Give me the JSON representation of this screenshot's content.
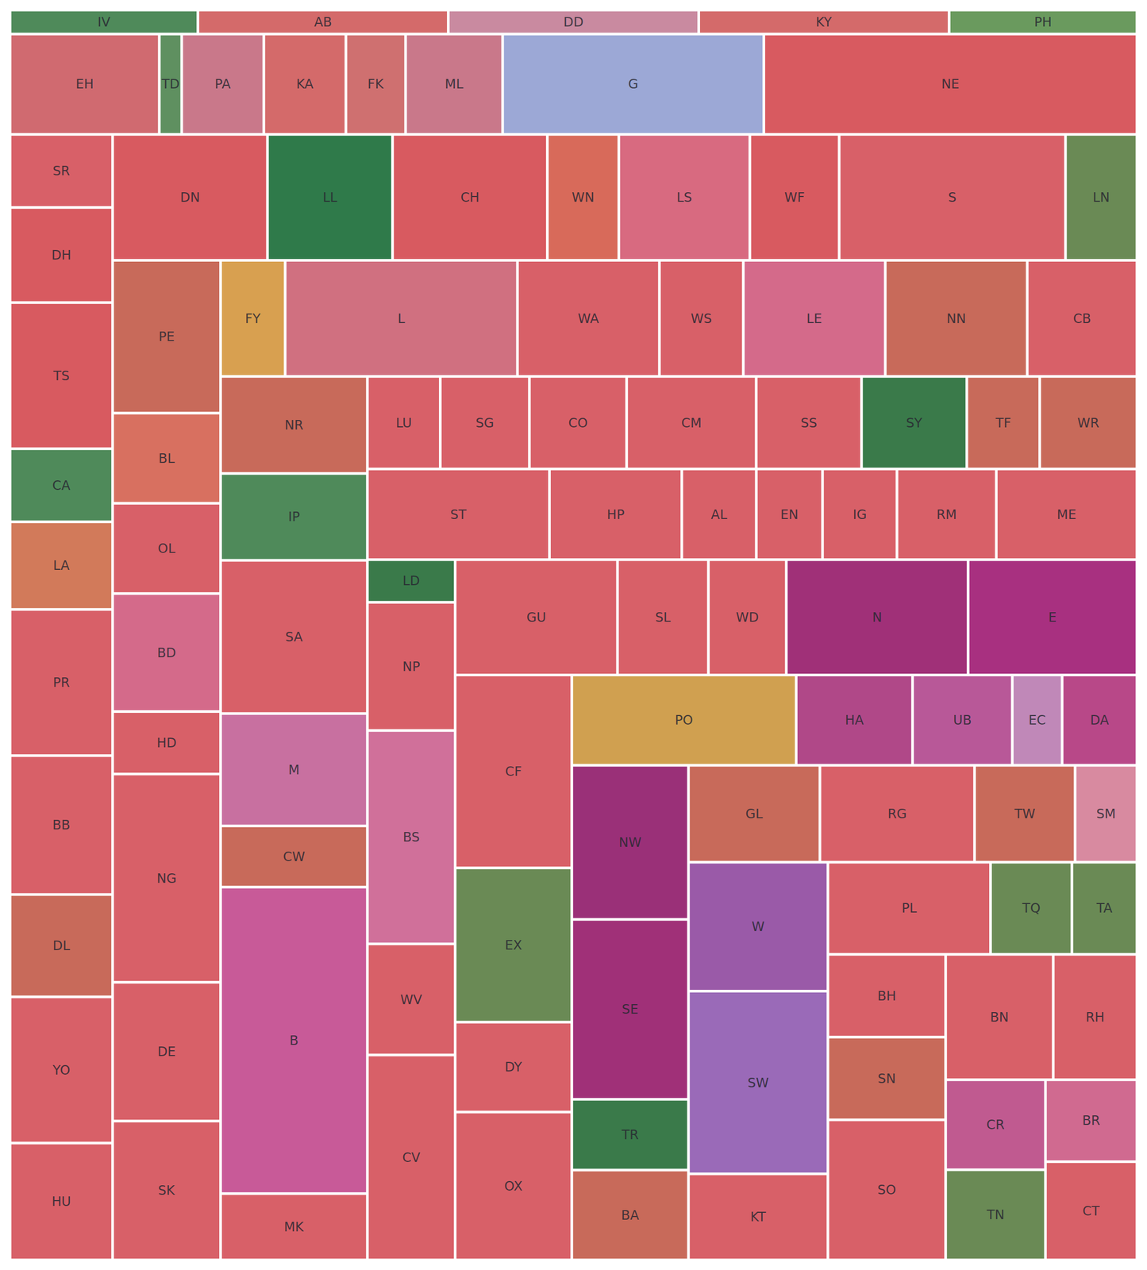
{
  "chart_data": {
    "type": "treemap",
    "categories": [
      "IV",
      "AB",
      "DD",
      "KY",
      "PH",
      "EH",
      "TD",
      "PA",
      "KA",
      "FK",
      "ML",
      "G",
      "NE",
      "SR",
      "DH",
      "TS",
      "CA",
      "LA",
      "PR",
      "BB",
      "DL",
      "YO",
      "HU",
      "DN",
      "LL",
      "CH",
      "WN",
      "LS",
      "WF",
      "S",
      "LN",
      "PE",
      "BL",
      "OL",
      "BD",
      "HD",
      "NG",
      "DE",
      "SK",
      "FY",
      "L",
      "WA",
      "WS",
      "LE",
      "NN",
      "CB",
      "NR",
      "IP",
      "SA",
      "M",
      "CW",
      "B",
      "MK",
      "LU",
      "SG",
      "CO",
      "CM",
      "SS",
      "SY",
      "TF",
      "WR",
      "ST",
      "HP",
      "AL",
      "EN",
      "IG",
      "RM",
      "ME",
      "LD",
      "NP",
      "BS",
      "WV",
      "CV",
      "GU",
      "SL",
      "WD",
      "N",
      "E",
      "CF",
      "EX",
      "DY",
      "OX",
      "PO",
      "HA",
      "UB",
      "EC",
      "DA",
      "NW",
      "SE",
      "TR",
      "BA",
      "GL",
      "RG",
      "TW",
      "SM",
      "W",
      "SW",
      "KT",
      "PL",
      "TQ",
      "TA",
      "BH",
      "SN",
      "SO",
      "BN",
      "RH",
      "CR",
      "TN",
      "BR",
      "CT"
    ],
    "values": [
      6,
      8,
      8,
      8,
      6,
      20,
      3,
      11,
      11,
      8,
      13,
      35,
      50,
      10,
      13,
      20,
      10,
      12,
      20,
      19,
      14,
      20,
      16,
      26,
      21,
      26,
      12,
      22,
      15,
      38,
      12,
      22,
      13,
      13,
      17,
      9,
      30,
      20,
      20,
      10,
      36,
      22,
      13,
      22,
      22,
      17,
      19,
      17,
      30,
      22,
      12,
      60,
      13,
      9,
      11,
      12,
      16,
      13,
      13,
      9,
      12,
      22,
      16,
      9,
      8,
      9,
      12,
      17,
      5,
      15,
      25,
      13,
      24,
      25,
      14,
      12,
      28,
      26,
      30,
      24,
      14,
      23,
      27,
      14,
      12,
      6,
      9,
      24,
      28,
      11,
      14,
      17,
      20,
      13,
      8,
      24,
      34,
      16,
      20,
      10,
      8,
      13,
      13,
      22,
      18,
      14,
      12,
      12,
      10,
      12
    ],
    "colors": [
      "#4f8a5a",
      "#d46a6a",
      "#c98aa0",
      "#d46a6a",
      "#6a9a5e",
      "#d06a70",
      "#5f9060",
      "#c9788a",
      "#d46a6a",
      "#cf7070",
      "#c9788a",
      "#9ca8d6",
      "#d85a60",
      "#d86068",
      "#d85a60",
      "#d85a60",
      "#4f8a5a",
      "#d27a5a",
      "#d86068",
      "#d86068",
      "#c86a5a",
      "#d86068",
      "#d86068",
      "#d85a60",
      "#2f7a4a",
      "#d85a60",
      "#d86a5a",
      "#d86a80",
      "#d85a60",
      "#d86068",
      "#6a8a55",
      "#c86a5a",
      "#d87060",
      "#d86068",
      "#d46a8a",
      "#d86068",
      "#d86068",
      "#d86068",
      "#d86068",
      "#d8a050",
      "#d07080",
      "#d86068",
      "#d86068",
      "#d46a8a",
      "#c86a5a",
      "#d86068",
      "#c86a5a",
      "#4f8a5a",
      "#d86068",
      "#c870a0",
      "#c86a5a",
      "#c85a98",
      "#d86068",
      "#d86068",
      "#d86068",
      "#d86068",
      "#d86068",
      "#d86068",
      "#3a7a4a",
      "#c86a5a",
      "#c86a5a",
      "#d86068",
      "#d86068",
      "#d86068",
      "#d86068",
      "#d86068",
      "#d86068",
      "#d86068",
      "#3a7a4a",
      "#d86068",
      "#d0709a",
      "#d86068",
      "#d86068",
      "#d86068",
      "#d86068",
      "#d86068",
      "#a03078",
      "#a83080",
      "#d86068",
      "#6a8a55",
      "#d86068",
      "#d86068",
      "#d0a050",
      "#b04888",
      "#b85898",
      "#c088b8",
      "#b84888",
      "#9a3078",
      "#a03078",
      "#3a7a4a",
      "#c86a5a",
      "#c86a5a",
      "#d86068",
      "#c86a5a",
      "#d88aa0",
      "#9a5aa8",
      "#9a6ab8",
      "#d86068",
      "#d86068",
      "#6a8a55",
      "#6a8a55",
      "#d86068",
      "#c86a5a",
      "#d86068",
      "#d86068",
      "#d86068",
      "#c05a90",
      "#6a8a55",
      "#d06a90",
      "#d86068"
    ]
  }
}
